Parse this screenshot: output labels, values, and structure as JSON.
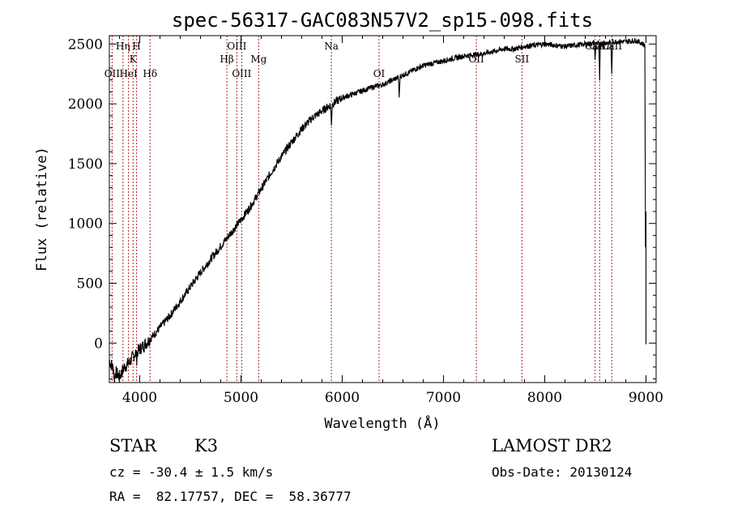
{
  "chart_data": {
    "type": "line",
    "title": "spec-56317-GAC083N57V2_sp15-098.fits",
    "xlabel": "Wavelength (Å)",
    "ylabel": "Flux (relative)",
    "xlim": [
      3700,
      9100
    ],
    "ylim": [
      -330,
      2570
    ],
    "xticks": [
      4000,
      5000,
      6000,
      7000,
      8000,
      9000
    ],
    "yticks": [
      0,
      500,
      1000,
      1500,
      2000,
      2500
    ],
    "grid": false,
    "line_color": "#000000",
    "marker_color": "#b22222",
    "lines": [
      {
        "label": "OII",
        "x": 3727,
        "row": 3
      },
      {
        "label": "Hη",
        "x": 3835,
        "row": 0
      },
      {
        "label": "HeI",
        "x": 3889,
        "row": 3
      },
      {
        "label": "K",
        "x": 3934,
        "row": 1
      },
      {
        "label": "H",
        "x": 3969,
        "row": 0
      },
      {
        "label": "Hδ",
        "x": 4102,
        "row": 3
      },
      {
        "label": "Hβ",
        "x": 4861,
        "row": 2
      },
      {
        "label": "OIII",
        "x": 4959,
        "row": 0
      },
      {
        "label": "OIII",
        "x": 5007,
        "row": 3
      },
      {
        "label": "Mg",
        "x": 5175,
        "row": 2
      },
      {
        "label": "Na",
        "x": 5893,
        "row": 0
      },
      {
        "label": "OI",
        "x": 6364,
        "row": 3
      },
      {
        "label": "OII",
        "x": 7325,
        "row": 2
      },
      {
        "label": "SII",
        "x": 7775,
        "row": 2
      },
      {
        "label": "CaII",
        "x": 8498,
        "row": 0
      },
      {
        "label": "CaII",
        "x": 8542,
        "row": 0
      },
      {
        "label": "CaII",
        "x": 8662,
        "row": 0
      }
    ],
    "spectrum": {
      "x": [
        3700,
        3750,
        3800,
        3850,
        3900,
        3950,
        4000,
        4100,
        4200,
        4300,
        4400,
        4500,
        4600,
        4700,
        4800,
        4900,
        5000,
        5100,
        5200,
        5300,
        5400,
        5500,
        5600,
        5700,
        5800,
        5900,
        6000,
        6100,
        6200,
        6300,
        6400,
        6500,
        6600,
        6700,
        6800,
        6900,
        7000,
        7100,
        7200,
        7300,
        7400,
        7500,
        7600,
        7700,
        7800,
        7900,
        8000,
        8100,
        8200,
        8300,
        8400,
        8500,
        8600,
        8700,
        8800,
        8900,
        8950,
        8990
      ],
      "y": [
        -150,
        -230,
        -280,
        -200,
        -160,
        -90,
        -50,
        30,
        130,
        230,
        350,
        470,
        590,
        700,
        810,
        920,
        1030,
        1150,
        1290,
        1430,
        1560,
        1680,
        1790,
        1880,
        1940,
        2000,
        2050,
        2080,
        2110,
        2140,
        2160,
        2200,
        2240,
        2280,
        2320,
        2340,
        2360,
        2380,
        2400,
        2410,
        2420,
        2440,
        2460,
        2460,
        2480,
        2490,
        2500,
        2490,
        2480,
        2490,
        2500,
        2510,
        2510,
        2520,
        2520,
        2530,
        2510,
        2490
      ]
    },
    "absorption": [
      {
        "x": 3750,
        "depth": 120
      },
      {
        "x": 3970,
        "depth": 60
      },
      {
        "x": 5893,
        "depth": 180
      },
      {
        "x": 6563,
        "depth": 190
      },
      {
        "x": 8498,
        "depth": 150
      },
      {
        "x": 8542,
        "depth": 320
      },
      {
        "x": 8662,
        "depth": 280
      }
    ]
  },
  "footer": {
    "object_class": "STAR",
    "subclass": "K3",
    "survey": "LAMOST DR2",
    "redshift": "cz = -30.4 ± 1.5 km/s",
    "obs_date": "Obs-Date: 20130124",
    "coords": "RA =  82.17757, DEC =  58.36777"
  }
}
